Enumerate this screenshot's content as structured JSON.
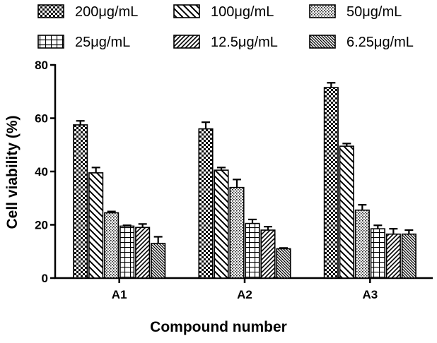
{
  "chart_data": {
    "type": "bar",
    "title": "",
    "xlabel": "Compound number",
    "ylabel": "Cell viability (%)",
    "ylim": [
      0,
      80
    ],
    "yticks": [
      0,
      20,
      40,
      60,
      80
    ],
    "categories": [
      "A1",
      "A2",
      "A3"
    ],
    "legend_position": "top",
    "series": [
      {
        "name": "200μg/mL",
        "pattern": "checker",
        "values": [
          57.5,
          56,
          71.5
        ],
        "errors": [
          1.5,
          2.5,
          1.8
        ]
      },
      {
        "name": "100μg/mL",
        "pattern": "back-diagonal",
        "values": [
          39.5,
          40.5,
          49.5
        ],
        "errors": [
          2.0,
          1.0,
          1.0
        ]
      },
      {
        "name": "50μg/mL",
        "pattern": "dots",
        "values": [
          24.5,
          34,
          25.5
        ],
        "errors": [
          0.5,
          3.0,
          2.0
        ]
      },
      {
        "name": "25μg/mL",
        "pattern": "grid",
        "values": [
          19.5,
          20.5,
          18.5
        ],
        "errors": [
          0.3,
          1.5,
          1.3
        ]
      },
      {
        "name": "12.5μg/mL",
        "pattern": "forward-diagonal",
        "values": [
          19,
          18,
          16.5
        ],
        "errors": [
          1.3,
          1.3,
          2.0
        ]
      },
      {
        "name": "6.25μg/mL",
        "pattern": "dense-diagonal",
        "values": [
          13,
          11,
          16.5
        ],
        "errors": [
          2.5,
          0.3,
          1.5
        ]
      }
    ]
  }
}
